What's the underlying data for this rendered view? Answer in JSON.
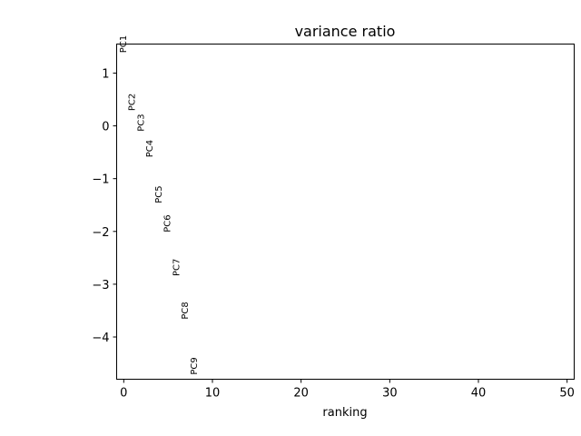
{
  "chart_data": {
    "type": "scatter",
    "title": "variance ratio",
    "xlabel": "ranking",
    "ylabel": "",
    "xlim": [
      -0.8,
      50.8
    ],
    "ylim": [
      -4.8,
      1.55
    ],
    "xticks": [
      0,
      10,
      20,
      30,
      40,
      50
    ],
    "yticks": [
      1,
      0,
      -1,
      -2,
      -3,
      -4
    ],
    "ytick_labels": [
      "1",
      "0",
      "−1",
      "−2",
      "−3",
      "−4"
    ],
    "grid": false,
    "points": [
      {
        "label": "PC1",
        "x": 0,
        "y": 1.55
      },
      {
        "label": "PC2",
        "x": 1,
        "y": 0.45
      },
      {
        "label": "PC3",
        "x": 2,
        "y": 0.06
      },
      {
        "label": "PC4",
        "x": 3,
        "y": -0.43
      },
      {
        "label": "PC5",
        "x": 4,
        "y": -1.3
      },
      {
        "label": "PC6",
        "x": 5,
        "y": -1.85
      },
      {
        "label": "PC7",
        "x": 6,
        "y": -2.68
      },
      {
        "label": "PC8",
        "x": 7,
        "y": -3.5
      },
      {
        "label": "PC9",
        "x": 8,
        "y": -4.55
      }
    ]
  }
}
